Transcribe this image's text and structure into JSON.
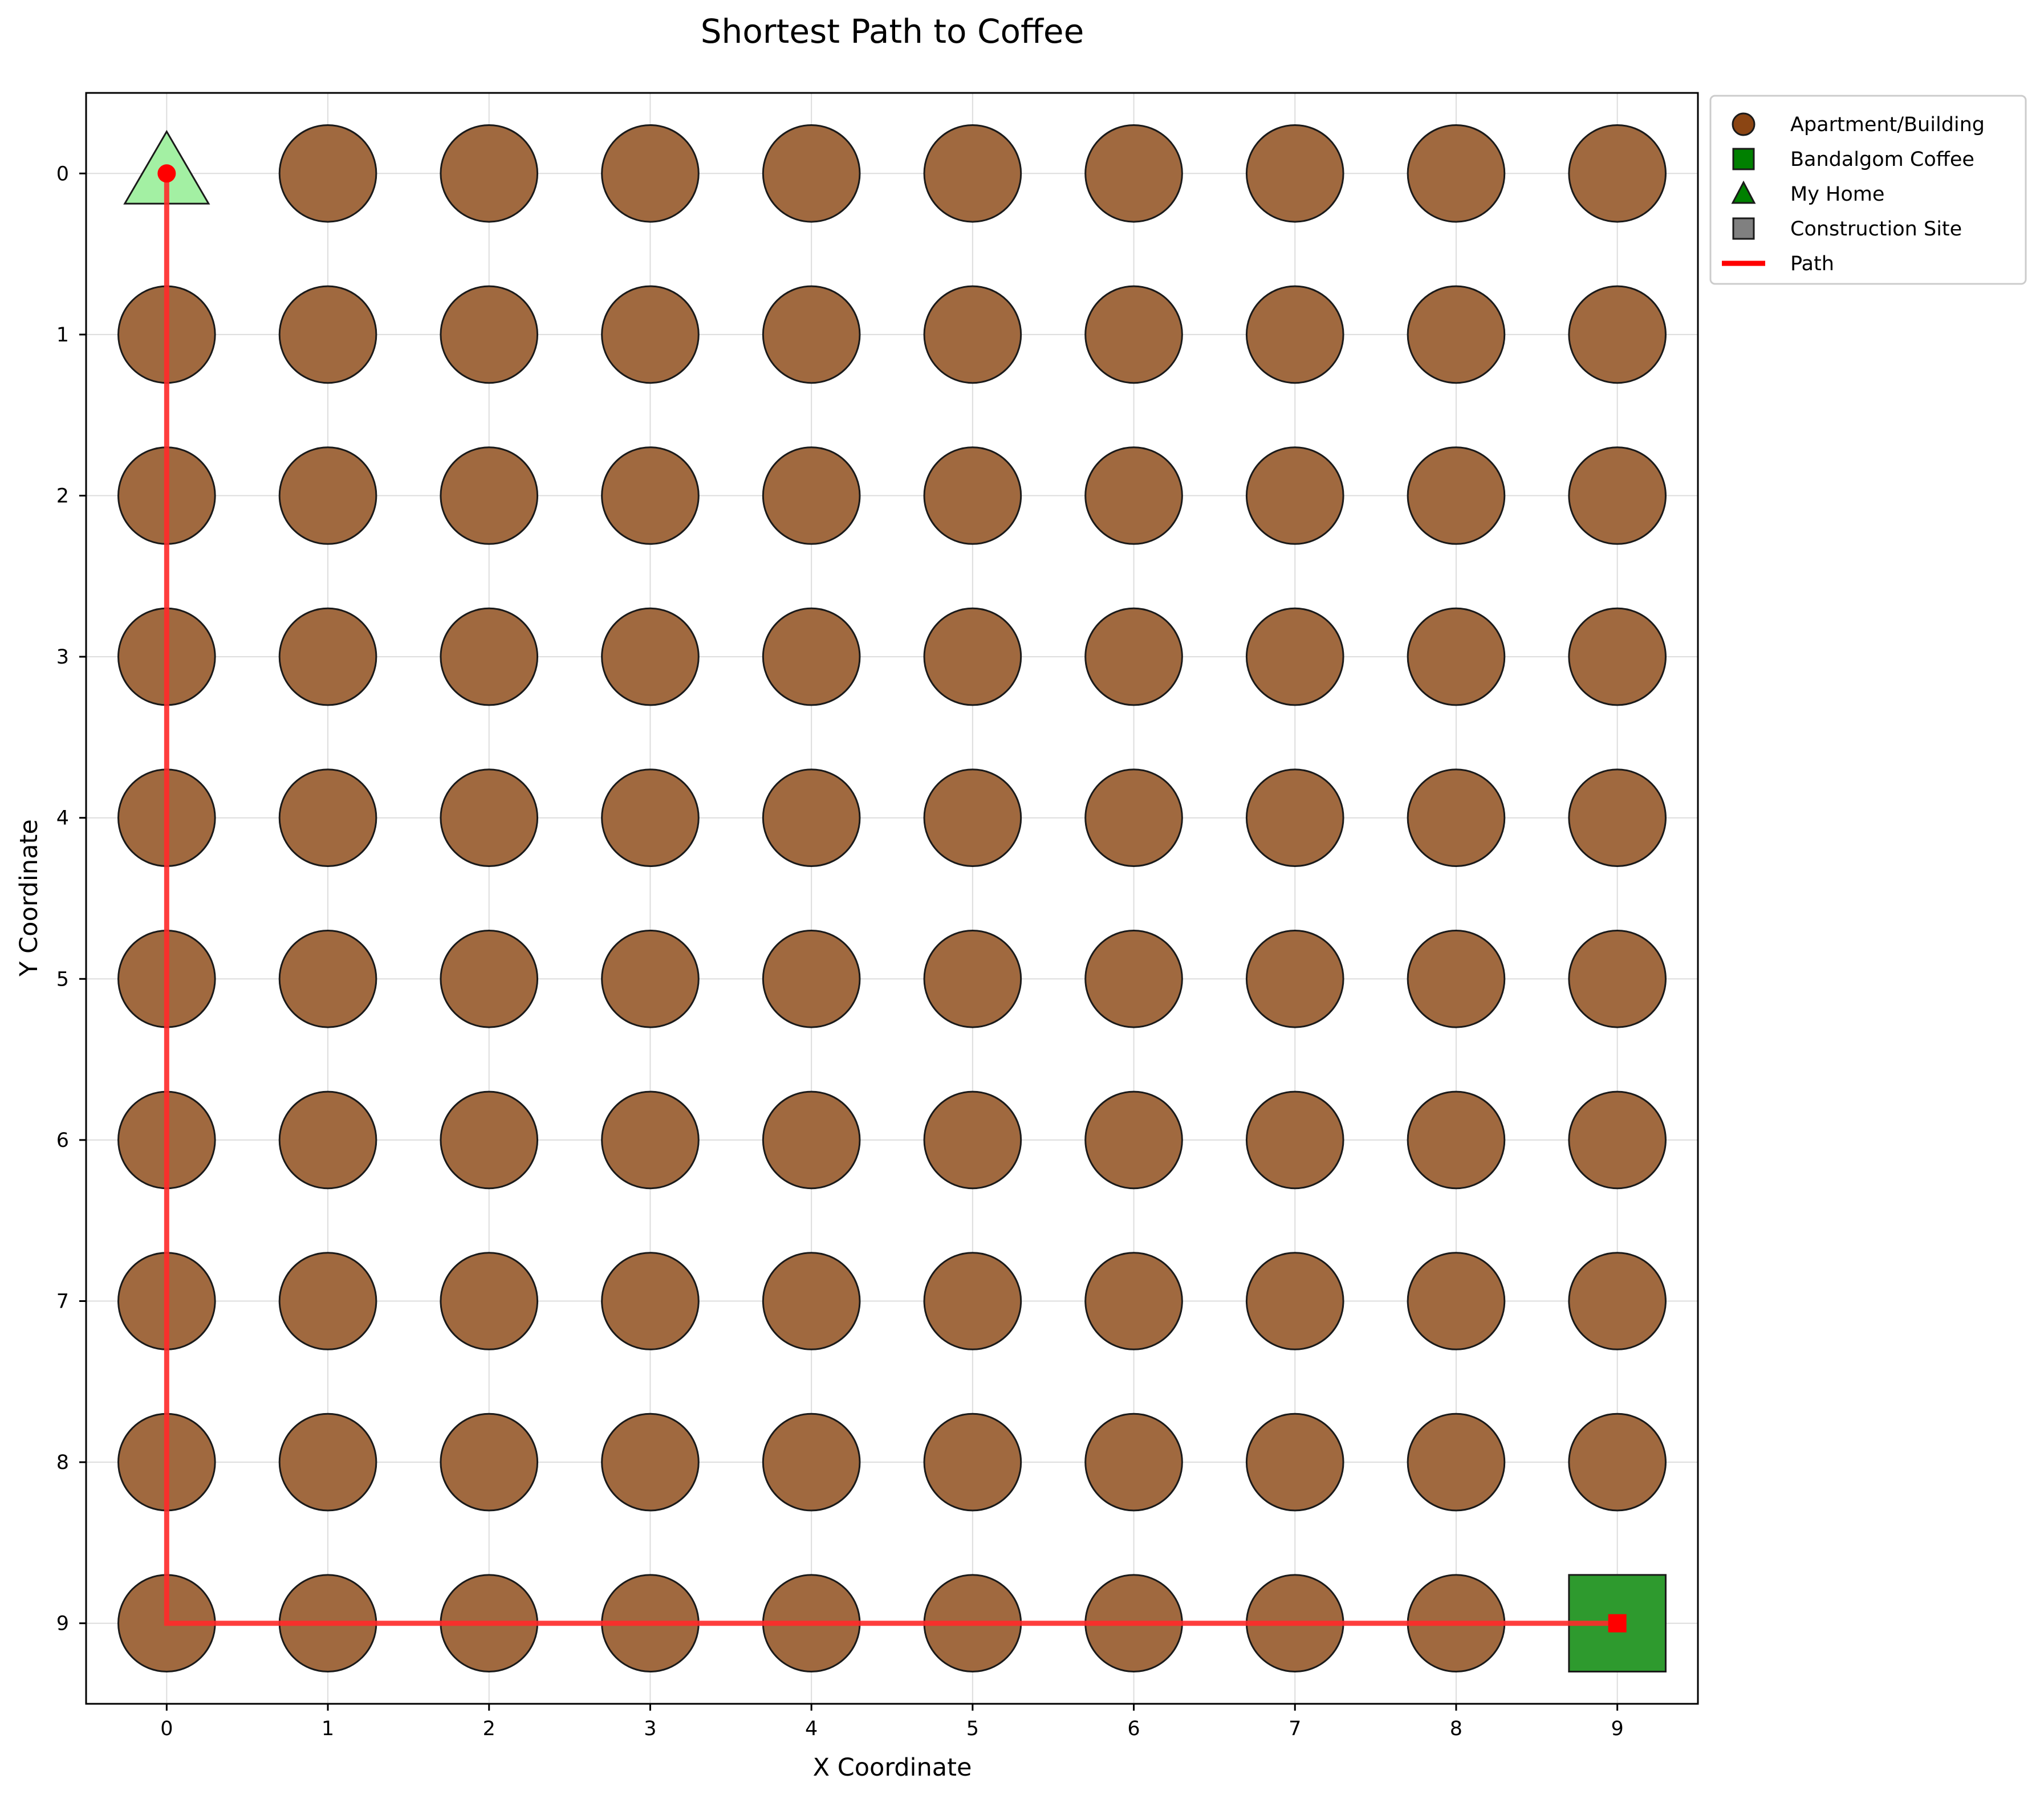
{
  "chart_data": {
    "type": "scatter",
    "title": "Shortest Path to Coffee",
    "xlabel": "X Coordinate",
    "ylabel": "Y Coordinate",
    "xlim": [
      -0.5,
      9.5
    ],
    "ylim": [
      9.5,
      -0.5
    ],
    "y_inverted": true,
    "grid": true,
    "x_ticks": [
      "0",
      "1",
      "2",
      "3",
      "4",
      "5",
      "6",
      "7",
      "8",
      "9"
    ],
    "y_ticks": [
      "0",
      "1",
      "2",
      "3",
      "4",
      "5",
      "6",
      "7",
      "8",
      "9"
    ],
    "legend_position": "outside-upper-right",
    "legend": [
      {
        "label": "Apartment/Building",
        "marker": "circle",
        "color": "#8b4513"
      },
      {
        "label": "Bandalgom Coffee",
        "marker": "square",
        "color": "#008000"
      },
      {
        "label": "My Home",
        "marker": "triangle",
        "color": "#008000"
      },
      {
        "label": "Construction Site",
        "marker": "square",
        "color": "#808080"
      },
      {
        "label": "Path",
        "marker": "line",
        "color": "#ff0000"
      }
    ],
    "grid_cells": {
      "width": 10,
      "height": 10
    },
    "home": {
      "x": 0,
      "y": 0
    },
    "coffee": {
      "x": 9,
      "y": 9
    },
    "construction_sites": [],
    "apartments": "all other cells",
    "path": [
      {
        "x": 0,
        "y": 0
      },
      {
        "x": 0,
        "y": 1
      },
      {
        "x": 0,
        "y": 2
      },
      {
        "x": 0,
        "y": 3
      },
      {
        "x": 0,
        "y": 4
      },
      {
        "x": 0,
        "y": 5
      },
      {
        "x": 0,
        "y": 6
      },
      {
        "x": 0,
        "y": 7
      },
      {
        "x": 0,
        "y": 8
      },
      {
        "x": 0,
        "y": 9
      },
      {
        "x": 1,
        "y": 9
      },
      {
        "x": 2,
        "y": 9
      },
      {
        "x": 3,
        "y": 9
      },
      {
        "x": 4,
        "y": 9
      },
      {
        "x": 5,
        "y": 9
      },
      {
        "x": 6,
        "y": 9
      },
      {
        "x": 7,
        "y": 9
      },
      {
        "x": 8,
        "y": 9
      },
      {
        "x": 9,
        "y": 9
      }
    ],
    "colors": {
      "apartment_fill": "#a0693f",
      "apartment_edge": "#1a1a1a",
      "coffee_fill": "#2e9a2e",
      "home_fill": "#a3f0a3",
      "path": "#ff2a2a",
      "path_marker": "#ff0000",
      "grid": "#dddddd"
    }
  }
}
